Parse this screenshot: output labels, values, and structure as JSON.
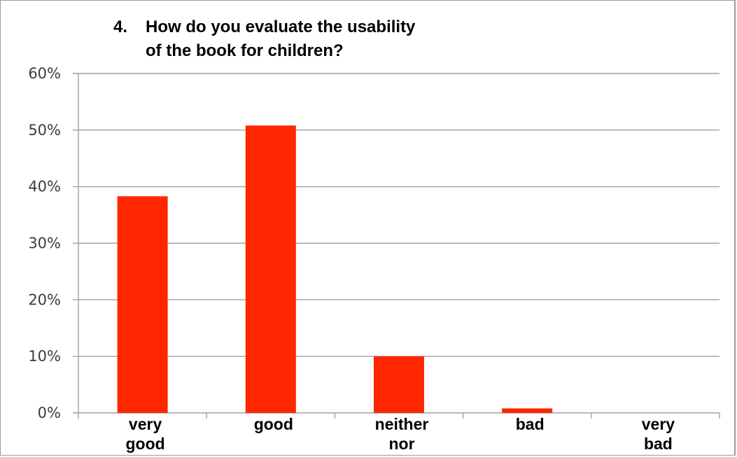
{
  "chart_data": {
    "type": "bar",
    "title_number": "4.",
    "title_lines": [
      "How do you evaluate the usability",
      "of the book for children?"
    ],
    "categories": [
      [
        "very",
        "good"
      ],
      [
        "good"
      ],
      [
        "neither",
        "nor"
      ],
      [
        "bad"
      ],
      [
        "very",
        "bad"
      ]
    ],
    "values": [
      38.3,
      50.8,
      10.0,
      0.8,
      0.0
    ],
    "ylim": [
      0,
      60
    ],
    "yticks": [
      0,
      10,
      20,
      30,
      40,
      50,
      60
    ],
    "ytick_labels": [
      "0%",
      "10%",
      "20%",
      "30%",
      "40%",
      "50%",
      "60%"
    ],
    "grid": true,
    "legend": "none",
    "bar_color": "#ff2600",
    "gridline_color": "#a0a0a0"
  }
}
